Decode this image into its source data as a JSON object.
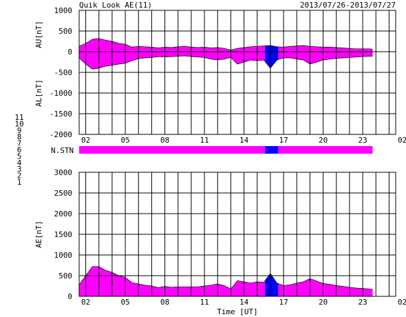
{
  "header": {
    "title": "Quik Look AE(11)",
    "date_range": "2013/07/26-2013/07/27"
  },
  "x_axis": {
    "xlabel": "Time [UT]",
    "tick_labels": [
      "02",
      "05",
      "08",
      "11",
      "14",
      "17",
      "20",
      "23",
      "02"
    ]
  },
  "legend": {
    "items": [
      {
        "label": "11",
        "color": "#00e5e5"
      },
      {
        "label": "10",
        "color": "#ff00ff"
      },
      {
        "label": "9",
        "color": "#0000cc"
      },
      {
        "label": "8",
        "color": "#d8d800"
      },
      {
        "label": "7",
        "color": "#8fd88f"
      },
      {
        "label": "6",
        "color": "#e00000"
      },
      {
        "label": "5",
        "color": "#c8c8c8"
      },
      {
        "label": "4",
        "color": "#9a9a9a"
      },
      {
        "label": "3",
        "color": "#00a0a0"
      },
      {
        "label": "2",
        "color": "#c000c0"
      },
      {
        "label": "1",
        "color": "#0000aa"
      }
    ]
  },
  "station_bar_label": "N.STN",
  "chart_data": [
    {
      "type": "area",
      "panel": "AU/AL",
      "ylabel_upper": "AU[nT]",
      "ylabel_lower": "AL[nT]",
      "ylim": [
        -2000,
        1000
      ],
      "yticks": [
        -2000,
        -1500,
        -1000,
        -500,
        0,
        500,
        1000
      ],
      "xlim_hours": [
        1.5,
        25.5
      ],
      "grid": true,
      "fill_color": "#ff00ff",
      "alt_fill_color": "#0000ff",
      "alt_interval_hours": [
        15.6,
        16.6
      ],
      "time_hours": [
        1.5,
        2.0,
        2.5,
        3.0,
        3.5,
        4.0,
        4.5,
        5.0,
        5.5,
        6.0,
        6.5,
        7.0,
        7.5,
        8.0,
        8.5,
        9.0,
        9.5,
        10.0,
        10.5,
        11.0,
        11.5,
        12.0,
        12.5,
        13.0,
        13.5,
        14.0,
        14.5,
        15.0,
        15.5,
        16.0,
        16.5,
        17.0,
        17.5,
        18.0,
        18.5,
        19.0,
        19.5,
        20.0,
        20.5,
        21.0,
        21.5,
        22.0,
        22.5,
        23.0,
        23.5,
        23.75
      ],
      "au": [
        130,
        200,
        300,
        320,
        280,
        250,
        200,
        180,
        110,
        130,
        120,
        110,
        90,
        110,
        100,
        120,
        130,
        110,
        100,
        110,
        90,
        100,
        80,
        40,
        80,
        100,
        120,
        130,
        140,
        150,
        120,
        110,
        130,
        140,
        150,
        130,
        120,
        110,
        110,
        100,
        90,
        80,
        70,
        70,
        70,
        60
      ],
      "al": [
        -150,
        -300,
        -420,
        -400,
        -350,
        -330,
        -300,
        -280,
        -220,
        -170,
        -150,
        -140,
        -120,
        -130,
        -120,
        -110,
        -100,
        -120,
        -130,
        -140,
        -180,
        -200,
        -180,
        -140,
        -300,
        -250,
        -200,
        -220,
        -200,
        -400,
        -200,
        -150,
        -150,
        -180,
        -200,
        -300,
        -250,
        -200,
        -180,
        -160,
        -150,
        -140,
        -130,
        -120,
        -110,
        -110
      ]
    },
    {
      "type": "area",
      "panel": "AE",
      "ylabel": "AE[nT]",
      "ylim": [
        0,
        3000
      ],
      "yticks": [
        0,
        500,
        1000,
        1500,
        2000,
        2500,
        3000
      ],
      "xlim_hours": [
        1.5,
        25.5
      ],
      "grid": true,
      "fill_color": "#ff00ff",
      "alt_fill_color": "#0000ff",
      "alt_interval_hours": [
        15.6,
        16.6
      ],
      "time_hours": [
        1.5,
        2.0,
        2.5,
        3.0,
        3.5,
        4.0,
        4.5,
        5.0,
        5.5,
        6.0,
        6.5,
        7.0,
        7.5,
        8.0,
        8.5,
        9.0,
        9.5,
        10.0,
        10.5,
        11.0,
        11.5,
        12.0,
        12.5,
        13.0,
        13.5,
        14.0,
        14.5,
        15.0,
        15.5,
        16.0,
        16.5,
        17.0,
        17.5,
        18.0,
        18.5,
        19.0,
        19.5,
        20.0,
        20.5,
        21.0,
        21.5,
        22.0,
        22.5,
        23.0,
        23.5,
        23.75
      ],
      "ae": [
        280,
        500,
        720,
        720,
        630,
        580,
        500,
        460,
        330,
        300,
        270,
        250,
        210,
        240,
        220,
        230,
        230,
        230,
        230,
        250,
        270,
        300,
        260,
        180,
        380,
        350,
        320,
        350,
        340,
        550,
        320,
        260,
        280,
        320,
        350,
        430,
        370,
        310,
        290,
        260,
        240,
        220,
        200,
        190,
        180,
        170
      ]
    },
    {
      "type": "bar",
      "panel": "N.STN",
      "fill_color": "#ff00ff",
      "alt_fill_color": "#0000ff",
      "alt_interval_hours": [
        15.6,
        16.6
      ],
      "end_hours": 23.75
    }
  ]
}
